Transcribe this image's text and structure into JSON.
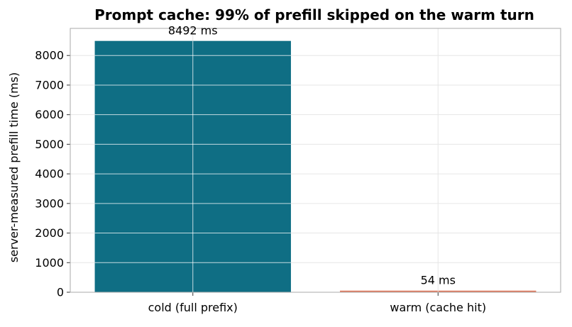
{
  "chart_data": {
    "type": "bar",
    "title": "Prompt cache: 99% of prefill skipped on the warm turn",
    "xlabel": "",
    "ylabel": "server-measured prefill time (ms)",
    "categories": [
      "cold (full prefix)",
      "warm (cache hit)"
    ],
    "values": [
      8492,
      54
    ],
    "value_labels": [
      "8492 ms",
      "54 ms"
    ],
    "colors": [
      "#0f6e84",
      "#e07a5f"
    ],
    "ylim": [
      0,
      8916
    ],
    "yticks": [
      0,
      1000,
      2000,
      3000,
      4000,
      5000,
      6000,
      7000,
      8000
    ],
    "grid": true,
    "legend": false
  }
}
